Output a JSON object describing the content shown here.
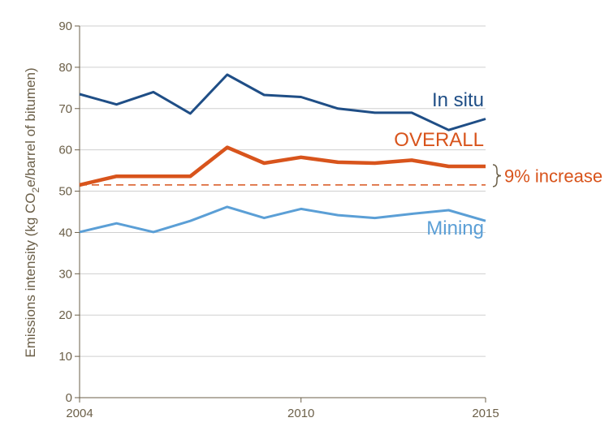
{
  "chart_data": {
    "type": "line",
    "x": [
      2004,
      2005,
      2006,
      2007,
      2008,
      2009,
      2010,
      2011,
      2012,
      2013,
      2014,
      2015
    ],
    "x_ticks": [
      "2004",
      "2010",
      "2015"
    ],
    "y_ticks": [
      "0",
      "10",
      "20",
      "30",
      "40",
      "50",
      "60",
      "70",
      "80",
      "90"
    ],
    "ylim": [
      0,
      90
    ],
    "xlim": [
      2004,
      2015
    ],
    "ylabel_parts": {
      "before": "Emissions intensity (kg CO",
      "subscript": "2",
      "after": "e/barrel of bitumen)"
    },
    "grid": "horizontal",
    "series": [
      {
        "name": "In situ",
        "color": "#1f4e86",
        "values": [
          73.5,
          71,
          74,
          68.8,
          78.2,
          73.3,
          72.8,
          70,
          69,
          69,
          64.8,
          67.5
        ]
      },
      {
        "name": "OVERALL",
        "color": "#d8541c",
        "values": [
          51.5,
          53.6,
          53.6,
          53.6,
          60.6,
          56.8,
          58.2,
          57,
          56.8,
          57.5,
          56,
          56
        ]
      },
      {
        "name": "Mining",
        "color": "#5b9fd6",
        "values": [
          40.1,
          42.2,
          40.1,
          42.8,
          46.2,
          43.5,
          45.7,
          44.2,
          43.5,
          44.5,
          45.4,
          42.8
        ]
      }
    ],
    "reference_line": {
      "value": 51.5,
      "color": "#d8541c",
      "style": "dashed"
    },
    "annotation": {
      "text": "9% increase",
      "color": "#d8541c",
      "brace_color": "#6b5f48",
      "from": 51.5,
      "to": 56
    }
  }
}
